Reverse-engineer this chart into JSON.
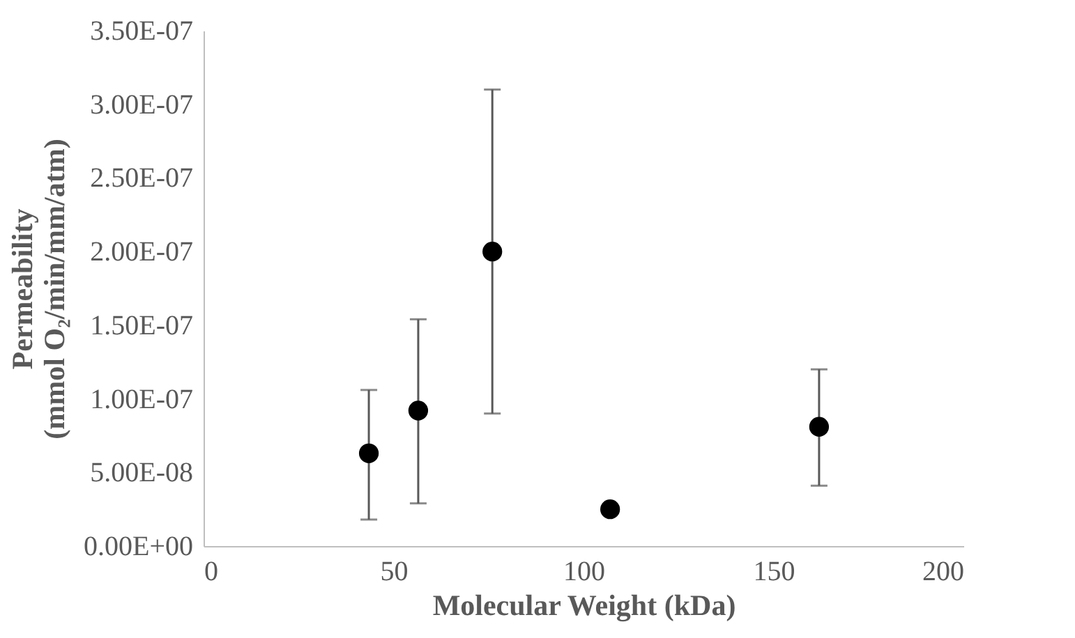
{
  "chart_data": {
    "type": "scatter",
    "xlabel": "Molecular Weight (kDa)",
    "ylabel": "Permeability\n(mmol O₂/min/mm/atm)",
    "x": [
      43.5,
      56.5,
      76,
      107,
      162
    ],
    "series": [
      {
        "color": "#000000",
        "values": [
          6.3e-08,
          9.2e-08,
          2e-07,
          2.5e-08,
          8.1e-08
        ],
        "errors": [
          [
            1.8e-08,
            1.06e-07
          ],
          [
            2.9e-08,
            1.54e-07
          ],
          [
            9e-08,
            3.1e-07
          ],
          [
            2.2e-08,
            2.8e-08
          ],
          [
            4.1e-08,
            1.2e-07
          ]
        ]
      }
    ],
    "xlim": [
      0,
      200
    ],
    "xticks": [
      0,
      50,
      100,
      150,
      200
    ],
    "ylim": [
      0,
      3.5e-07
    ],
    "yticks": [
      {
        "value": 0,
        "label": "0.00E+00"
      },
      {
        "value": 5e-08,
        "label": "5.00E-08"
      },
      {
        "value": 1e-07,
        "label": "1.00E-07"
      },
      {
        "value": 1.5e-07,
        "label": "1.50E-07"
      },
      {
        "value": 2e-07,
        "label": "2.00E-07"
      },
      {
        "value": 2.5e-07,
        "label": "2.50E-07"
      },
      {
        "value": 3e-07,
        "label": "3.00E-07"
      },
      {
        "value": 3.5e-07,
        "label": "3.50E-07"
      }
    ],
    "marker": "circle",
    "grid": false
  }
}
